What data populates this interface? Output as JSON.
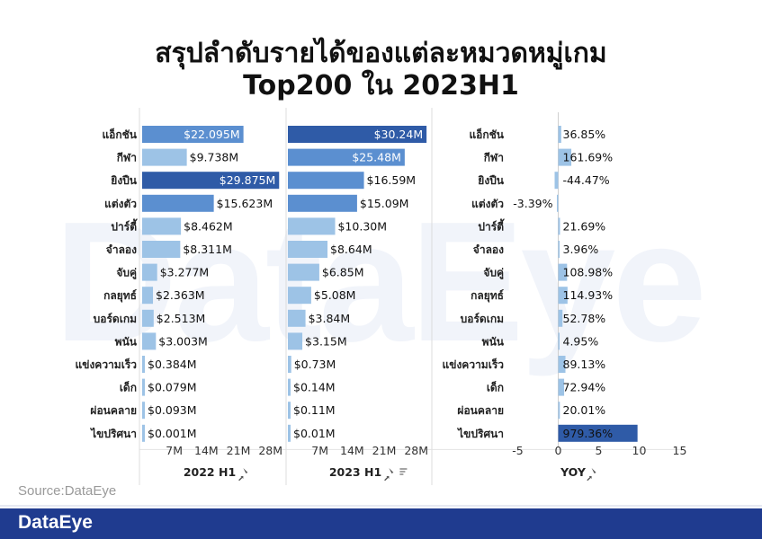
{
  "title_line1": "สรุปลำดับรายได้ของแต่ละหมวดหมู่เกม",
  "title_line2": "Top200 ใน 2023H1",
  "watermark": "DataEye",
  "source": "Source:DataEye",
  "brand": "DataEye",
  "colors": {
    "bar_light": "#9dc3e6",
    "bar_mid": "#5b8fd0",
    "bar_dark": "#2f5ba7",
    "footer": "#1f3b8f"
  },
  "chart_data": [
    {
      "type": "bar",
      "orientation": "horizontal",
      "xlabel": "2022 H1",
      "categories": [
        "แอ็กชัน",
        "กีฬา",
        "ยิงปืน",
        "แต่งตัว",
        "ปาร์ตี้",
        "จำลอง",
        "จับคู่",
        "กลยุทธ์",
        "บอร์ดเกม",
        "พนัน",
        "แข่งความเร็ว",
        "เด็ก",
        "ผ่อนคลาย",
        "ไขปริศนา"
      ],
      "values": [
        22.095,
        9.738,
        29.875,
        15.623,
        8.462,
        8.311,
        3.277,
        2.363,
        2.513,
        3.003,
        0.384,
        0.079,
        0.093,
        0.001
      ],
      "labels": [
        "$22.095M",
        "$9.738M",
        "$29.875M",
        "$15.623M",
        "$8.462M",
        "$8.311M",
        "$3.277M",
        "$2.363M",
        "$2.513M",
        "$3.003M",
        "$0.384M",
        "$0.079M",
        "$0.093M",
        "$0.001M"
      ],
      "ticks": [
        "7M",
        "14M",
        "21M",
        "28M"
      ],
      "tick_values": [
        7,
        14,
        21,
        28
      ],
      "xlim": [
        0,
        31
      ]
    },
    {
      "type": "bar",
      "orientation": "horizontal",
      "xlabel": "2023 H1",
      "categories": [
        "แอ็กชัน",
        "กีฬา",
        "ยิงปืน",
        "แต่งตัว",
        "ปาร์ตี้",
        "จำลอง",
        "จับคู่",
        "กลยุทธ์",
        "บอร์ดเกม",
        "พนัน",
        "แข่งความเร็ว",
        "เด็ก",
        "ผ่อนคลาย",
        "ไขปริศนา"
      ],
      "values": [
        30.24,
        25.48,
        16.59,
        15.09,
        10.3,
        8.64,
        6.85,
        5.08,
        3.84,
        3.15,
        0.73,
        0.14,
        0.11,
        0.01
      ],
      "labels": [
        "$30.24M",
        "$25.48M",
        "$16.59M",
        "$15.09M",
        "$10.30M",
        "$8.64M",
        "$6.85M",
        "$5.08M",
        "$3.84M",
        "$3.15M",
        "$0.73M",
        "$0.14M",
        "$0.11M",
        "$0.01M"
      ],
      "ticks": [
        "7M",
        "14M",
        "21M",
        "28M"
      ],
      "tick_values": [
        7,
        14,
        21,
        28
      ],
      "xlim": [
        0,
        31
      ]
    },
    {
      "type": "bar",
      "orientation": "horizontal",
      "xlabel": "YOY",
      "categories": [
        "แอ็กชัน",
        "กีฬา",
        "ยิงปืน",
        "แต่งตัว",
        "ปาร์ตี้",
        "จำลอง",
        "จับคู่",
        "กลยุทธ์",
        "บอร์ดเกม",
        "พนัน",
        "แข่งความเร็ว",
        "เด็ก",
        "ผ่อนคลาย",
        "ไขปริศนา"
      ],
      "values": [
        0.3685,
        1.6169,
        -0.4447,
        -0.0339,
        0.2169,
        0.0396,
        1.0898,
        1.1493,
        0.5278,
        0.0495,
        0.8913,
        0.7294,
        0.2001,
        9.7936
      ],
      "labels": [
        "36.85%",
        "161.69%",
        "-44.47%",
        "-3.39%",
        "21.69%",
        "3.96%",
        "108.98%",
        "114.93%",
        "52.78%",
        "4.95%",
        "89.13%",
        "72.94%",
        "20.01%",
        "979.36%"
      ],
      "ticks": [
        "-5",
        "0",
        "5",
        "10",
        "15"
      ],
      "tick_values": [
        -5,
        0,
        5,
        10,
        15
      ],
      "xlim": [
        -6.5,
        15.5
      ]
    }
  ]
}
